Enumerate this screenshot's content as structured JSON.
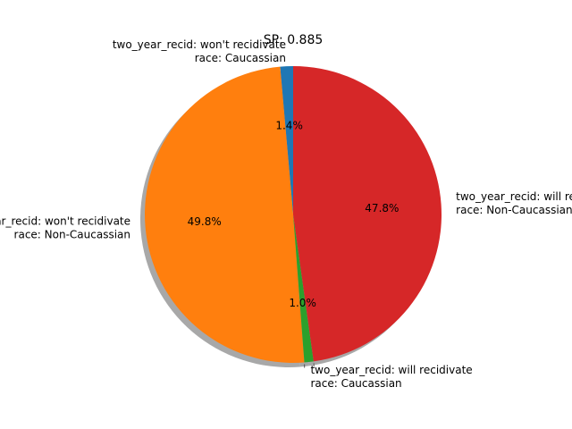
{
  "chart_data": {
    "type": "pie",
    "title": "SP: 0.885",
    "slices": [
      {
        "label": [
          "two_year_recid: won't recidivate",
          "race: Caucassian"
        ],
        "value": 1.4,
        "pct_label": "1.4%",
        "color": "#1f77b4"
      },
      {
        "label": [
          "two_year_recid: won't recidivate",
          "race: Non-Caucassian"
        ],
        "value": 49.8,
        "pct_label": "49.8%",
        "color": "#ff7f0e"
      },
      {
        "label": [
          "two_year_recid: will recidivate",
          "race: Caucassian"
        ],
        "value": 1.0,
        "pct_label": "1.0%",
        "color": "#2ca02c"
      },
      {
        "label": [
          "two_year_recid: will recidivate",
          "race: Non-Caucassian"
        ],
        "value": 47.8,
        "pct_label": "47.8%",
        "color": "#d62728"
      }
    ],
    "start_angle_deg": 90,
    "direction": "counterclockwise",
    "shadow": true
  }
}
